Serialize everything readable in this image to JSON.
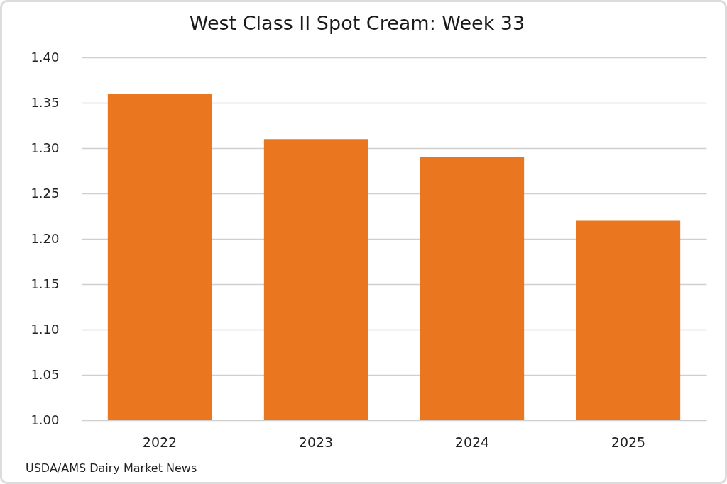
{
  "chart_data": {
    "type": "bar",
    "title": "West Class II Spot Cream: Week 33",
    "categories": [
      "2022",
      "2023",
      "2024",
      "2025"
    ],
    "values": [
      1.36,
      1.31,
      1.29,
      1.22
    ],
    "color": "#ea761f",
    "ylim": [
      1.0,
      1.4
    ],
    "yticks": [
      {
        "value": 1.0,
        "label": "1.00"
      },
      {
        "value": 1.05,
        "label": "1.05"
      },
      {
        "value": 1.1,
        "label": "1.10"
      },
      {
        "value": 1.15,
        "label": "1.15"
      },
      {
        "value": 1.2,
        "label": "1.20"
      },
      {
        "value": 1.25,
        "label": "1.25"
      },
      {
        "value": 1.3,
        "label": "1.30"
      },
      {
        "value": 1.35,
        "label": "1.35"
      },
      {
        "value": 1.4,
        "label": "1.40"
      }
    ],
    "grid": "y",
    "annotations": [
      "USDA/AMS Dairy Market News"
    ]
  }
}
